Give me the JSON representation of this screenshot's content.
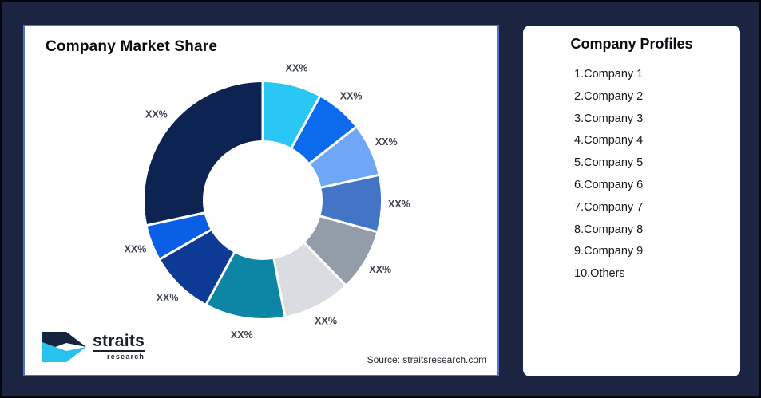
{
  "page": {
    "background": "#1B2441",
    "frame_border": "#05070d"
  },
  "chart_card": {
    "title": "Company Market Share",
    "source": "Source: straitsresearch.com",
    "border_color": "#4E73D1"
  },
  "logo": {
    "line1": "straits",
    "line2": "research",
    "navy": "#16243F",
    "cyan": "#29C2EF"
  },
  "profiles_card": {
    "title": "Company Profiles",
    "items": [
      "1.Company 1",
      "2.Company 2",
      "3.Company 3",
      "4.Company 4",
      "5.Company 5",
      "6.Company 6",
      "7.Company 7",
      "8.Company 8",
      "9.Company 9",
      "10.Others"
    ]
  },
  "chart_data": {
    "type": "pie",
    "subtype": "donut",
    "title": "Company Market Share",
    "legend_position": "none",
    "value_labels": "XX% (placeholder values, no numbers shown)",
    "source": "Source: straitsresearch.com",
    "segments": [
      {
        "label": "XX%",
        "color": "#2BC7F4",
        "pct_estimated": 8.0
      },
      {
        "label": "XX%",
        "color": "#0B6AEE",
        "pct_estimated": 6.4
      },
      {
        "label": "XX%",
        "color": "#6FA7F6",
        "pct_estimated": 7.2
      },
      {
        "label": "XX%",
        "color": "#4374C6",
        "pct_estimated": 7.7
      },
      {
        "label": "XX%",
        "color": "#939CA9",
        "pct_estimated": 8.4
      },
      {
        "label": "XX%",
        "color": "#D9DCE1",
        "pct_estimated": 9.3
      },
      {
        "label": "XX%",
        "color": "#0C86A4",
        "pct_estimated": 10.9
      },
      {
        "label": "XX%",
        "color": "#0D3A94",
        "pct_estimated": 8.8
      },
      {
        "label": "XX%",
        "color": "#0A5FE6",
        "pct_estimated": 4.9
      },
      {
        "label": "XX%",
        "color": "#0D2452",
        "pct_estimated": 28.4
      }
    ],
    "geometry": {
      "start_angle_deg": 0,
      "direction": "clockwise",
      "inner_radius_ratio": 0.51
    }
  }
}
